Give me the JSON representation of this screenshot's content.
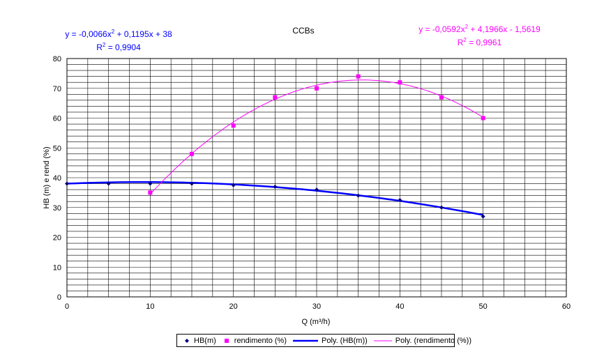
{
  "chart_data": {
    "type": "scatter",
    "title": "CCBs",
    "xlabel": "Q (m³/h)",
    "ylabel": "HB (m) e rend (%)",
    "xlim": [
      0,
      60
    ],
    "ylim": [
      0,
      80
    ],
    "x_ticks": [
      "0",
      "10",
      "20",
      "30",
      "40",
      "50",
      "60"
    ],
    "y_ticks": [
      "0",
      "10",
      "20",
      "30",
      "40",
      "50",
      "60",
      "70",
      "80"
    ],
    "grid": true,
    "legend_position": "bottom",
    "series": [
      {
        "name": "HB(m)",
        "kind": "points",
        "marker": "diamond",
        "color": "#000080",
        "x": [
          0,
          5,
          10,
          15,
          20,
          25,
          30,
          35,
          40,
          45,
          50
        ],
        "y": [
          38,
          38,
          38,
          38,
          37.5,
          37,
          36,
          34,
          32.5,
          30,
          27
        ]
      },
      {
        "name": "rendimento (%)",
        "kind": "points",
        "marker": "square",
        "color": "#ff00ff",
        "x": [
          10,
          15,
          20,
          25,
          30,
          35,
          40,
          45,
          50
        ],
        "y": [
          35,
          48,
          57.5,
          67,
          70,
          74,
          72,
          67,
          60
        ]
      },
      {
        "name": "Poly. (HB(m))",
        "kind": "trendline",
        "color": "#0000ff",
        "coefficients": {
          "a": -0.0066,
          "b": 0.1195,
          "c": 38
        },
        "x_range": [
          0,
          50
        ]
      },
      {
        "name": "Poly. (rendimento (%))",
        "kind": "trendline",
        "color": "#ff00ff",
        "coefficients": {
          "a": -0.0592,
          "b": 4.1966,
          "c": -1.5619
        },
        "x_range": [
          10,
          50
        ]
      }
    ],
    "annotations": {
      "hb": {
        "equation": "y = -0,0066x",
        "equation_tail": " + 0,1195x + 38",
        "r2": "= 0,9904",
        "color": "#0000ff"
      },
      "rend": {
        "equation": "y = -0,0592x",
        "equation_tail": " + 4,1966x - 1,5619",
        "r2": "= 0,9961",
        "color": "#ff00ff"
      }
    }
  }
}
